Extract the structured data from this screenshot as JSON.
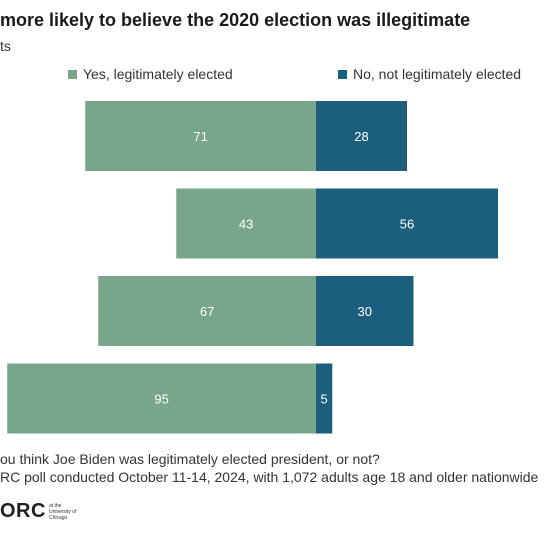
{
  "title": "more likely to believe the 2020 election was illegitimate",
  "subtitle": "ts",
  "colors": {
    "yes": "#77a68a",
    "no": "#1b5e7e"
  },
  "chart_data": {
    "type": "bar",
    "orientation": "horizontal-diverging",
    "stacked": true,
    "legend_position": "top",
    "series": [
      {
        "name": "Yes, legitimately elected",
        "values": [
          71,
          43,
          67,
          95
        ]
      },
      {
        "name": "No, not legitimately elected",
        "values": [
          28,
          56,
          30,
          5
        ]
      }
    ],
    "categories": [
      "",
      "",
      "",
      ""
    ],
    "grid": false
  },
  "notes": {
    "question": "ou think Joe Biden was legitimately elected president, or not?",
    "source": "RC poll conducted October 11-14, 2024, with 1,072 adults age 18 and older nationwide"
  },
  "logo": {
    "text": "ORC",
    "tagline": "at the University of Chicago"
  }
}
